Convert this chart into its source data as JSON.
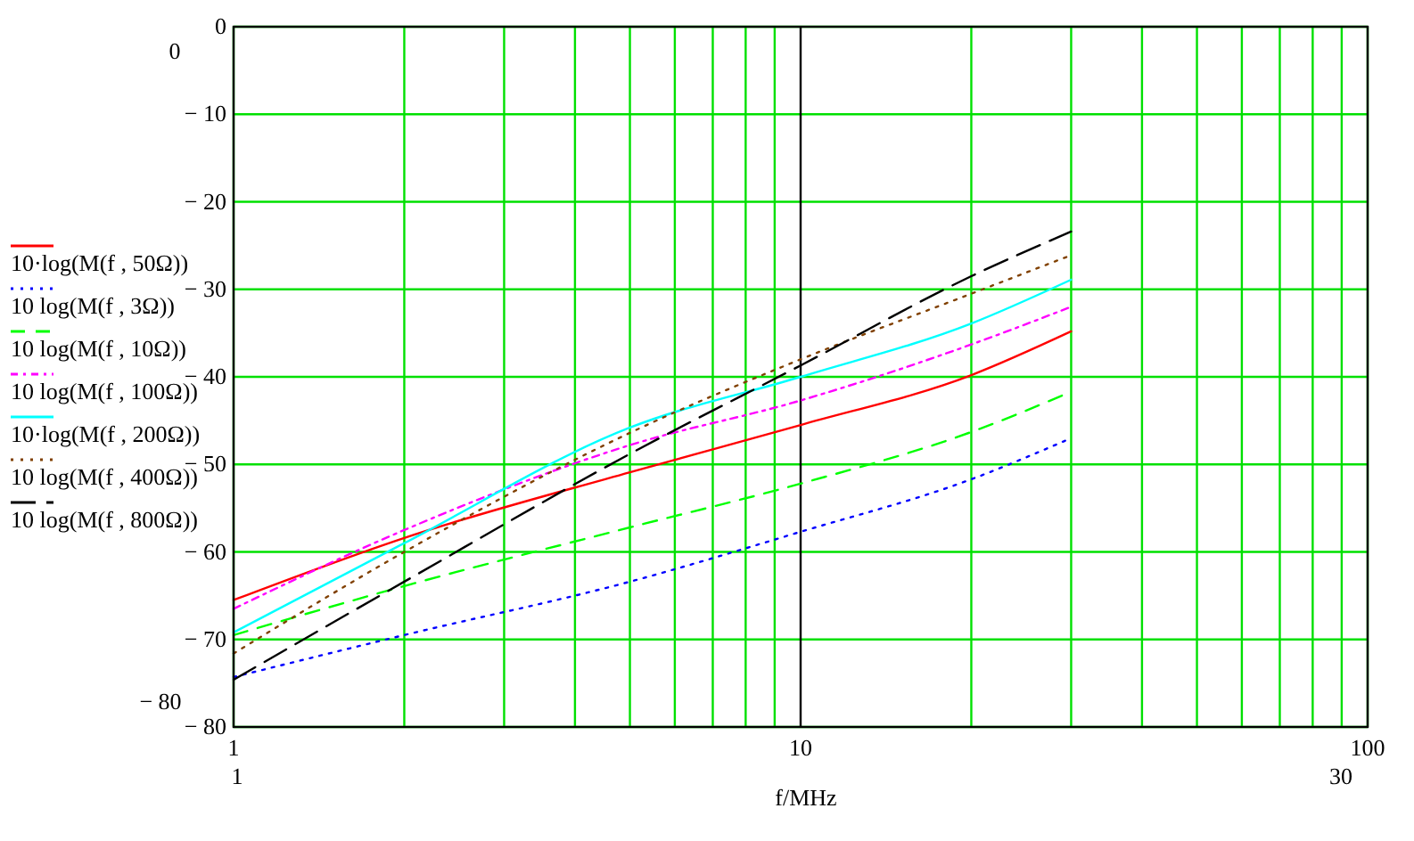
{
  "chart_data": {
    "type": "line",
    "xlabel": "f/MHz",
    "log": "x",
    "grid": true,
    "legend": "left",
    "x": [
      1,
      2,
      5,
      10,
      20,
      30
    ],
    "xlim": [
      1,
      100
    ],
    "xticks": [
      1,
      {
        "value": 2,
        "label": null
      },
      {
        "value": 3,
        "label": null
      },
      {
        "value": 4,
        "label": null
      },
      {
        "value": 5,
        "label": null
      },
      {
        "value": 6,
        "label": null
      },
      {
        "value": 7,
        "label": null
      },
      {
        "value": 8,
        "label": null
      },
      {
        "value": 9,
        "label": null
      },
      10,
      {
        "value": 20,
        "label": null
      },
      {
        "value": 30,
        "label": null
      },
      {
        "value": 40,
        "label": null
      },
      {
        "value": 50,
        "label": null
      },
      {
        "value": 60,
        "label": null
      },
      {
        "value": 70,
        "label": null
      },
      {
        "value": 80,
        "label": null
      },
      {
        "value": 90,
        "label": null
      },
      100
    ],
    "ylim": [
      -80,
      0
    ],
    "yticks": [
      0,
      {
        "value": -10,
        "label": "− 10"
      },
      {
        "value": -20,
        "label": "− 20"
      },
      {
        "value": -30,
        "label": "− 30"
      },
      {
        "value": -40,
        "label": "− 40"
      },
      {
        "value": -50,
        "label": "− 50"
      },
      {
        "value": -60,
        "label": "− 60"
      },
      {
        "value": -70,
        "label": "− 70"
      },
      {
        "value": -80,
        "label": "− 80"
      }
    ],
    "series": [
      {
        "name": "10·log(M(f , 50Ω))",
        "color": "#ff0000",
        "line_style": "solid",
        "values": [
          -65.5,
          -58.4,
          -50.9,
          -45.5,
          -39.8,
          -34.8
        ]
      },
      {
        "name": "10 log(M(f , 3Ω))",
        "color": "#0000ff",
        "line_style": "dotted",
        "values": [
          -74.3,
          -69.5,
          -63.4,
          -57.7,
          -51.7,
          -47.0
        ]
      },
      {
        "name": "10 log(M(f , 10Ω))",
        "color": "#00ff00",
        "line_style": "dashed",
        "values": [
          -69.5,
          -63.9,
          -57.2,
          -52.2,
          -46.3,
          -41.7
        ]
      },
      {
        "name": "10 log(M(f , 100Ω))",
        "color": "#ff00ff",
        "line_style": "dashdot",
        "values": [
          -66.5,
          -57.5,
          -47.8,
          -42.7,
          -36.3,
          -32.0
        ]
      },
      {
        "name": "10·log(M(f , 200Ω))",
        "color": "#00ffff",
        "line_style": "solid",
        "values": [
          -69.2,
          -59.0,
          -45.8,
          -40.0,
          -33.9,
          -28.9
        ]
      },
      {
        "name": "10 log(M(f , 400Ω))",
        "color": "#804000",
        "line_style": "dotted",
        "values": [
          -71.6,
          -60.0,
          -46.4,
          -38.0,
          -30.5,
          -26.1
        ]
      },
      {
        "name": "10 log(M(f , 800Ω))",
        "color": "#000000",
        "line_style": "longdash",
        "values": [
          -74.6,
          -63.4,
          -48.8,
          -38.7,
          -28.5,
          -23.4
        ]
      }
    ],
    "ref_lines": [
      {
        "axis": "x",
        "value": 10,
        "color": "#000000"
      }
    ],
    "annotations": [
      "0",
      "− 80",
      "1",
      "30"
    ]
  }
}
